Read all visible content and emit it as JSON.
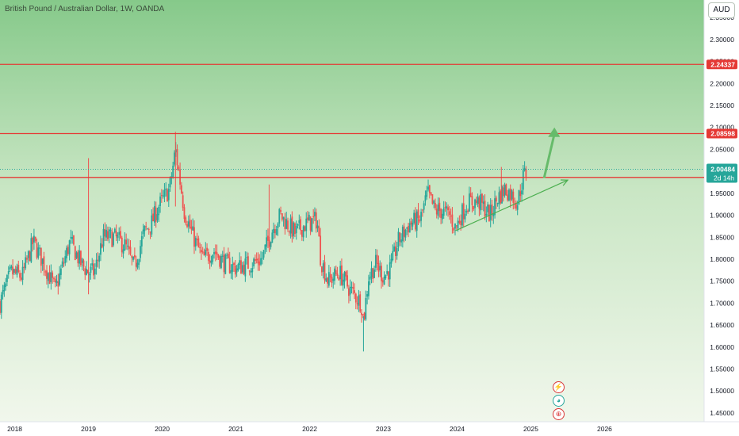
{
  "header": {
    "title": "British Pound / Australian Dollar, 1W, OANDA",
    "currency_button": "AUD"
  },
  "colors": {
    "bg_top": "#86c98a",
    "bg_bottom": "#f1f7ec",
    "up": "#26a69a",
    "down": "#ef5350",
    "level_line": "#e53935",
    "last_price_badge": "#26a69a",
    "level_badge": "#e53935",
    "trendline": "#4caf50",
    "arrow": "#66bb6a"
  },
  "chart_data": {
    "type": "candlestick",
    "symbol": "GBPAUD",
    "interval": "1W",
    "source": "OANDA",
    "ylim": [
      1.43,
      2.39
    ],
    "y_ticks": [
      1.45,
      1.5,
      1.55,
      1.6,
      1.65,
      1.7,
      1.75,
      1.8,
      1.85,
      1.9,
      1.95,
      2.0,
      2.05,
      2.1,
      2.15,
      2.2,
      2.25,
      2.3,
      2.35
    ],
    "y_tick_labels": [
      "1.45000",
      "1.50000",
      "1.55000",
      "1.60000",
      "1.65000",
      "1.70000",
      "1.75000",
      "1.80000",
      "1.85000",
      "1.90000",
      "1.95000",
      "2.00000",
      "2.05000",
      "2.10000",
      "2.15000",
      "2.20000",
      "2.25000",
      "2.30000",
      "2.35000"
    ],
    "x_range": [
      2017.8,
      2027.35
    ],
    "x_ticks": [
      2018,
      2019,
      2020,
      2021,
      2022,
      2023,
      2024,
      2025,
      2026
    ],
    "x_tick_labels": [
      "2018",
      "2019",
      "2020",
      "2021",
      "2022",
      "2023",
      "2024",
      "2025",
      "2026"
    ],
    "price_path": [
      [
        2017.8,
        1.7
      ],
      [
        2017.95,
        1.77
      ],
      [
        2018.1,
        1.76
      ],
      [
        2018.25,
        1.84
      ],
      [
        2018.45,
        1.77
      ],
      [
        2018.55,
        1.73
      ],
      [
        2018.75,
        1.84
      ],
      [
        2018.9,
        1.79
      ],
      [
        2019.0,
        1.77
      ],
      [
        2019.08,
        1.77
      ],
      [
        2019.2,
        1.85
      ],
      [
        2019.35,
        1.85
      ],
      [
        2019.5,
        1.83
      ],
      [
        2019.62,
        1.78
      ],
      [
        2019.75,
        1.86
      ],
      [
        2019.85,
        1.88
      ],
      [
        2019.95,
        1.92
      ],
      [
        2020.1,
        1.96
      ],
      [
        2020.18,
        2.05
      ],
      [
        2020.3,
        1.91
      ],
      [
        2020.4,
        1.86
      ],
      [
        2020.55,
        1.8
      ],
      [
        2020.7,
        1.82
      ],
      [
        2020.85,
        1.79
      ],
      [
        2021.0,
        1.78
      ],
      [
        2021.2,
        1.79
      ],
      [
        2021.35,
        1.8
      ],
      [
        2021.5,
        1.87
      ],
      [
        2021.6,
        1.9
      ],
      [
        2021.8,
        1.86
      ],
      [
        2021.95,
        1.88
      ],
      [
        2022.1,
        1.89
      ],
      [
        2022.15,
        1.8
      ],
      [
        2022.25,
        1.75
      ],
      [
        2022.4,
        1.77
      ],
      [
        2022.55,
        1.73
      ],
      [
        2022.7,
        1.7
      ],
      [
        2022.73,
        1.66
      ],
      [
        2022.8,
        1.76
      ],
      [
        2022.9,
        1.79
      ],
      [
        2023.0,
        1.76
      ],
      [
        2023.1,
        1.78
      ],
      [
        2023.2,
        1.84
      ],
      [
        2023.35,
        1.88
      ],
      [
        2023.5,
        1.89
      ],
      [
        2023.6,
        1.95
      ],
      [
        2023.7,
        1.91
      ],
      [
        2023.78,
        1.91
      ],
      [
        2023.9,
        1.9
      ],
      [
        2023.98,
        1.87
      ],
      [
        2024.05,
        1.9
      ],
      [
        2024.15,
        1.93
      ],
      [
        2024.3,
        1.93
      ],
      [
        2024.45,
        1.9
      ],
      [
        2024.55,
        1.94
      ],
      [
        2024.65,
        1.96
      ],
      [
        2024.72,
        1.95
      ],
      [
        2024.82,
        1.93
      ],
      [
        2024.9,
        1.99
      ],
      [
        2024.95,
        2.0
      ]
    ],
    "price_lines": [
      {
        "value": 2.24337,
        "label": "2.24337"
      },
      {
        "value": 2.08598,
        "label": "2.08598"
      },
      {
        "value": 1.98617,
        "label": "1.98617"
      }
    ],
    "last_price": {
      "value": 2.00484,
      "label": "2.00484",
      "countdown": "2d 14h"
    },
    "trendline": {
      "from": [
        2023.98,
        1.865
      ],
      "to": [
        2025.5,
        1.98
      ]
    },
    "projection_arrow": {
      "from": [
        2025.18,
        1.985
      ],
      "to": [
        2025.32,
        2.1
      ]
    }
  },
  "event_icons": [
    {
      "name": "lightning-event-icon",
      "glyph": "⚡"
    },
    {
      "name": "earnings-event-icon",
      "glyph": "◕"
    },
    {
      "name": "globe-event-icon",
      "glyph": "⊕"
    }
  ]
}
